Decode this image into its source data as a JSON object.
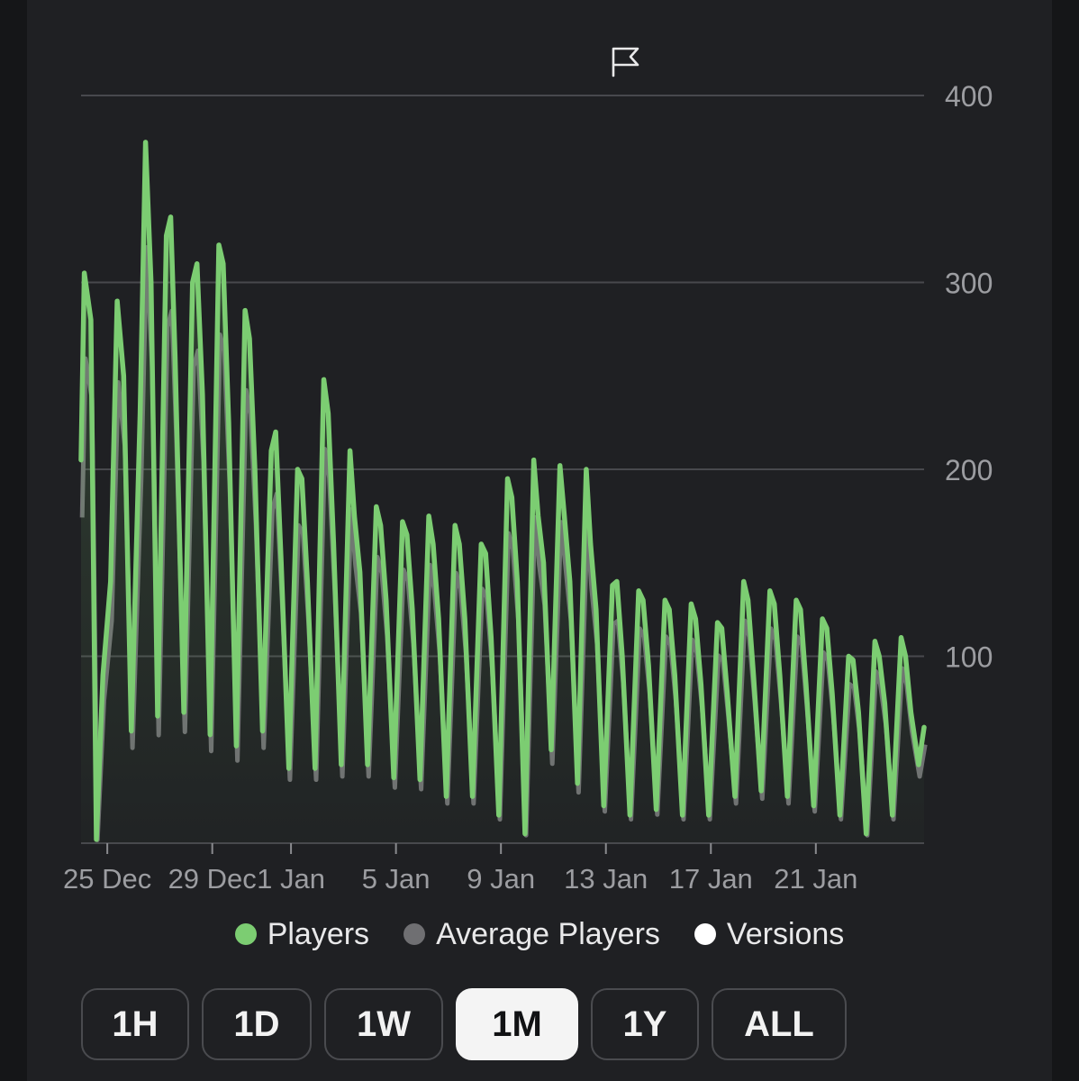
{
  "colors": {
    "players": "#7ccd72",
    "average": "#6f6f72",
    "versions": "#ffffff",
    "grid": "#48494d",
    "axis_text": "#9c9da1"
  },
  "toolbar": {
    "flag_icon": "flag-icon"
  },
  "chart_data": {
    "type": "line",
    "x_range": [
      "2023-12-24",
      "2024-01-24"
    ],
    "y_range": [
      0,
      400
    ],
    "y_ticks": [
      "400",
      "300",
      "200",
      "100"
    ],
    "x_ticks": [
      {
        "date": "2023-12-25",
        "label": "25 Dec"
      },
      {
        "date": "2023-12-29",
        "label": "29 Dec"
      },
      {
        "date": "2024-01-01",
        "label": "1 Jan"
      },
      {
        "date": "2024-01-05",
        "label": "5 Jan"
      },
      {
        "date": "2024-01-09",
        "label": "9 Jan"
      },
      {
        "date": "2024-01-13",
        "label": "13 Jan"
      },
      {
        "date": "2024-01-17",
        "label": "17 Jan"
      },
      {
        "date": "2024-01-21",
        "label": "21 Jan"
      }
    ],
    "grid": true,
    "legend_position": "bottom",
    "series": [
      {
        "name": "Players",
        "points": [
          [
            "2023-12-24T00:00",
            205
          ],
          [
            "2023-12-24T03:00",
            305
          ],
          [
            "2023-12-24T09:00",
            280
          ],
          [
            "2023-12-24T14:00",
            2
          ],
          [
            "2023-12-24T20:00",
            90
          ],
          [
            "2023-12-25T03:00",
            140
          ],
          [
            "2023-12-25T09:00",
            290
          ],
          [
            "2023-12-25T15:00",
            250
          ],
          [
            "2023-12-25T22:00",
            60
          ],
          [
            "2023-12-26T06:00",
            230
          ],
          [
            "2023-12-26T11:00",
            375
          ],
          [
            "2023-12-26T16:00",
            300
          ],
          [
            "2023-12-26T22:00",
            68
          ],
          [
            "2023-12-27T06:00",
            325
          ],
          [
            "2023-12-27T10:00",
            335
          ],
          [
            "2023-12-27T14:00",
            260
          ],
          [
            "2023-12-27T22:00",
            70
          ],
          [
            "2023-12-28T06:00",
            300
          ],
          [
            "2023-12-28T10:00",
            310
          ],
          [
            "2023-12-28T15:00",
            240
          ],
          [
            "2023-12-28T22:00",
            58
          ],
          [
            "2023-12-29T06:00",
            320
          ],
          [
            "2023-12-29T10:00",
            310
          ],
          [
            "2023-12-29T15:00",
            225
          ],
          [
            "2023-12-29T22:00",
            52
          ],
          [
            "2023-12-30T06:00",
            285
          ],
          [
            "2023-12-30T10:00",
            270
          ],
          [
            "2023-12-30T15:00",
            200
          ],
          [
            "2023-12-30T22:00",
            60
          ],
          [
            "2023-12-31T06:00",
            210
          ],
          [
            "2023-12-31T10:00",
            220
          ],
          [
            "2023-12-31T15:00",
            150
          ],
          [
            "2023-12-31T22:00",
            40
          ],
          [
            "2024-01-01T06:00",
            200
          ],
          [
            "2024-01-01T10:00",
            195
          ],
          [
            "2024-01-01T15:00",
            140
          ],
          [
            "2024-01-01T22:00",
            40
          ],
          [
            "2024-01-02T06:00",
            248
          ],
          [
            "2024-01-02T10:00",
            230
          ],
          [
            "2024-01-02T15:00",
            160
          ],
          [
            "2024-01-02T22:00",
            42
          ],
          [
            "2024-01-03T06:00",
            210
          ],
          [
            "2024-01-03T10:00",
            175
          ],
          [
            "2024-01-03T15:00",
            145
          ],
          [
            "2024-01-03T22:00",
            42
          ],
          [
            "2024-01-04T06:00",
            180
          ],
          [
            "2024-01-04T10:00",
            170
          ],
          [
            "2024-01-04T15:00",
            130
          ],
          [
            "2024-01-04T22:00",
            35
          ],
          [
            "2024-01-05T06:00",
            172
          ],
          [
            "2024-01-05T10:00",
            165
          ],
          [
            "2024-01-05T15:00",
            125
          ],
          [
            "2024-01-05T22:00",
            34
          ],
          [
            "2024-01-06T06:00",
            175
          ],
          [
            "2024-01-06T10:00",
            160
          ],
          [
            "2024-01-06T15:00",
            120
          ],
          [
            "2024-01-06T22:00",
            25
          ],
          [
            "2024-01-07T06:00",
            170
          ],
          [
            "2024-01-07T10:00",
            160
          ],
          [
            "2024-01-07T15:00",
            120
          ],
          [
            "2024-01-07T22:00",
            25
          ],
          [
            "2024-01-08T06:00",
            160
          ],
          [
            "2024-01-08T10:00",
            155
          ],
          [
            "2024-01-08T15:00",
            110
          ],
          [
            "2024-01-08T22:00",
            15
          ],
          [
            "2024-01-09T06:00",
            195
          ],
          [
            "2024-01-09T10:00",
            185
          ],
          [
            "2024-01-09T15:00",
            140
          ],
          [
            "2024-01-09T22:00",
            5
          ],
          [
            "2024-01-10T06:00",
            205
          ],
          [
            "2024-01-10T10:00",
            175
          ],
          [
            "2024-01-10T15:00",
            150
          ],
          [
            "2024-01-10T22:00",
            50
          ],
          [
            "2024-01-11T06:00",
            202
          ],
          [
            "2024-01-11T10:00",
            175
          ],
          [
            "2024-01-11T15:00",
            140
          ],
          [
            "2024-01-11T22:00",
            32
          ],
          [
            "2024-01-12T06:00",
            200
          ],
          [
            "2024-01-12T10:00",
            160
          ],
          [
            "2024-01-12T15:00",
            125
          ],
          [
            "2024-01-12T22:00",
            20
          ],
          [
            "2024-01-13T06:00",
            138
          ],
          [
            "2024-01-13T10:00",
            140
          ],
          [
            "2024-01-13T15:00",
            100
          ],
          [
            "2024-01-13T22:00",
            15
          ],
          [
            "2024-01-14T06:00",
            135
          ],
          [
            "2024-01-14T10:00",
            130
          ],
          [
            "2024-01-14T15:00",
            95
          ],
          [
            "2024-01-14T22:00",
            18
          ],
          [
            "2024-01-15T06:00",
            130
          ],
          [
            "2024-01-15T10:00",
            125
          ],
          [
            "2024-01-15T15:00",
            90
          ],
          [
            "2024-01-15T22:00",
            15
          ],
          [
            "2024-01-16T06:00",
            128
          ],
          [
            "2024-01-16T10:00",
            120
          ],
          [
            "2024-01-16T15:00",
            85
          ],
          [
            "2024-01-16T22:00",
            15
          ],
          [
            "2024-01-17T06:00",
            118
          ],
          [
            "2024-01-17T10:00",
            115
          ],
          [
            "2024-01-17T15:00",
            80
          ],
          [
            "2024-01-17T22:00",
            25
          ],
          [
            "2024-01-18T06:00",
            140
          ],
          [
            "2024-01-18T10:00",
            130
          ],
          [
            "2024-01-18T15:00",
            90
          ],
          [
            "2024-01-18T22:00",
            28
          ],
          [
            "2024-01-19T06:00",
            135
          ],
          [
            "2024-01-19T10:00",
            128
          ],
          [
            "2024-01-19T15:00",
            90
          ],
          [
            "2024-01-19T22:00",
            25
          ],
          [
            "2024-01-20T06:00",
            130
          ],
          [
            "2024-01-20T10:00",
            125
          ],
          [
            "2024-01-20T15:00",
            85
          ],
          [
            "2024-01-20T22:00",
            20
          ],
          [
            "2024-01-21T06:00",
            120
          ],
          [
            "2024-01-21T10:00",
            115
          ],
          [
            "2024-01-21T15:00",
            80
          ],
          [
            "2024-01-21T22:00",
            15
          ],
          [
            "2024-01-22T06:00",
            100
          ],
          [
            "2024-01-22T10:00",
            98
          ],
          [
            "2024-01-22T15:00",
            70
          ],
          [
            "2024-01-22T22:00",
            5
          ],
          [
            "2024-01-23T06:00",
            108
          ],
          [
            "2024-01-23T10:00",
            100
          ],
          [
            "2024-01-23T15:00",
            75
          ],
          [
            "2024-01-23T22:00",
            15
          ],
          [
            "2024-01-24T06:00",
            110
          ],
          [
            "2024-01-24T10:00",
            100
          ],
          [
            "2024-01-24T15:00",
            70
          ],
          [
            "2024-01-24T22:00",
            42
          ],
          [
            "2024-01-25T03:00",
            62
          ]
        ]
      },
      {
        "name": "Average Players",
        "scale_of_players": 0.85,
        "offset_hours": 1
      },
      {
        "name": "Versions"
      }
    ]
  },
  "range_buttons": [
    {
      "label": "1H",
      "active": false
    },
    {
      "label": "1D",
      "active": false
    },
    {
      "label": "1W",
      "active": false
    },
    {
      "label": "1M",
      "active": true
    },
    {
      "label": "1Y",
      "active": false
    },
    {
      "label": "ALL",
      "active": false
    }
  ]
}
